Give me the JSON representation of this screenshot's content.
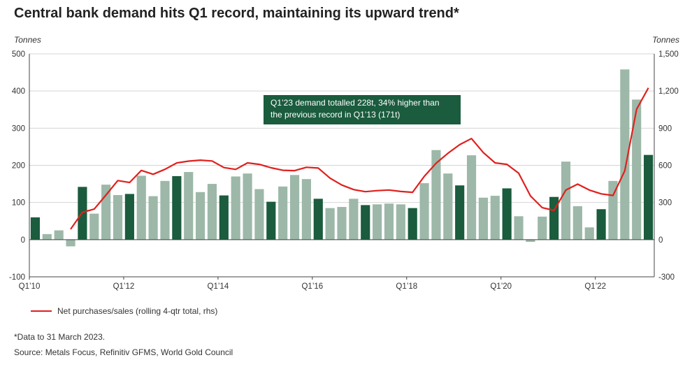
{
  "title": "Central bank demand hits Q1 record, maintaining its upward trend*",
  "annotation": "Q1’23 demand totalled 228t, 34% higher than\nthe previous record in Q1’13 (171t)",
  "footnote": "*Data to 31 March 2023.",
  "source": "Source: Metals Focus, Refinitiv GFMS, World Gold Council",
  "colors": {
    "q1_bar": "#1a5c3d",
    "other_bar": "#9db8a8",
    "line": "#e0201e",
    "annotation_bg": "#1a5c3d"
  },
  "chart_data": {
    "type": "bar",
    "y_left": {
      "label": "Tonnes",
      "ylim": [
        -100,
        500
      ],
      "ticks": [
        -100,
        0,
        100,
        200,
        300,
        400,
        500
      ]
    },
    "y_right": {
      "label": "Tonnes",
      "ylim": [
        -300,
        1500
      ],
      "ticks": [
        -300,
        0,
        300,
        600,
        900,
        "1,200",
        "1,500"
      ]
    },
    "x_tick_labels": [
      "Q1’10",
      "Q1’12",
      "Q1’14",
      "Q1’16",
      "Q1’18",
      "Q1’20",
      "Q1’22"
    ],
    "grid": "horizontal",
    "highlight": "Q1 quarters (dark green)",
    "categories": [
      "Q1'10",
      "Q2'10",
      "Q3'10",
      "Q4'10",
      "Q1'11",
      "Q2'11",
      "Q3'11",
      "Q4'11",
      "Q1'12",
      "Q2'12",
      "Q3'12",
      "Q4'12",
      "Q1'13",
      "Q2'13",
      "Q3'13",
      "Q4'13",
      "Q1'14",
      "Q2'14",
      "Q3'14",
      "Q4'14",
      "Q1'15",
      "Q2'15",
      "Q3'15",
      "Q4'15",
      "Q1'16",
      "Q2'16",
      "Q3'16",
      "Q4'16",
      "Q1'17",
      "Q2'17",
      "Q3'17",
      "Q4'17",
      "Q1'18",
      "Q2'18",
      "Q3'18",
      "Q4'18",
      "Q1'19",
      "Q2'19",
      "Q3'19",
      "Q4'19",
      "Q1'20",
      "Q2'20",
      "Q3'20",
      "Q4'20",
      "Q1'21",
      "Q2'21",
      "Q3'21",
      "Q4'21",
      "Q1'22",
      "Q2'22",
      "Q3'22",
      "Q4'22",
      "Q1'23"
    ],
    "series": [
      {
        "name": "",
        "axis": "left",
        "values": [
          60,
          15,
          25,
          -18,
          142,
          70,
          148,
          120,
          123,
          172,
          117,
          158,
          171,
          182,
          128,
          150,
          119,
          170,
          178,
          136,
          102,
          143,
          174,
          163,
          110,
          85,
          88,
          110,
          93,
          95,
          97,
          95,
          85,
          152,
          241,
          178,
          146,
          227,
          113,
          118,
          138,
          63,
          -6,
          62,
          115,
          210,
          90,
          33,
          82,
          158,
          458,
          377,
          228
        ]
      },
      {
        "name": "Net purchases/sales (rolling 4-qtr total, rhs)",
        "axis": "right",
        "values": [
          null,
          null,
          null,
          84,
          221,
          247,
          360,
          477,
          461,
          559,
          528,
          568,
          619,
          634,
          642,
          635,
          582,
          567,
          620,
          608,
          580,
          560,
          557,
          584,
          578,
          497,
          441,
          404,
          387,
          396,
          401,
          389,
          382,
          512,
          617,
          697,
          767,
          816,
          703,
          620,
          608,
          536,
          353,
          258,
          236,
          400,
          448,
          400,
          370,
          357,
          556,
          1052,
          1225
        ]
      }
    ]
  },
  "legend": {
    "line_label": "Net purchases/sales (rolling 4-qtr total, rhs)"
  }
}
